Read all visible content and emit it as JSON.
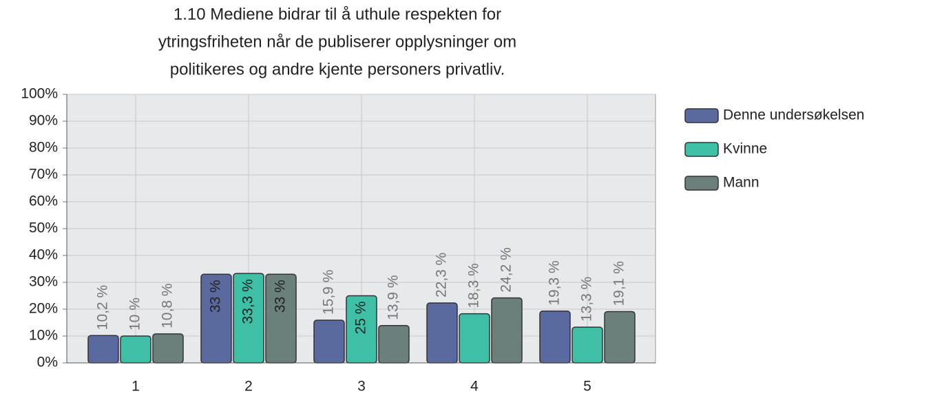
{
  "chart_data": {
    "type": "bar",
    "title": [
      "1.10 Mediene bidrar til å uthule respekten for",
      "ytringsfriheten når de publiserer opplysninger om",
      "politikeres og andre kjente personers privatliv."
    ],
    "categories": [
      "1",
      "2",
      "3",
      "4",
      "5"
    ],
    "series": [
      {
        "name": "Denne undersøkelsen",
        "color": "#5b6a9e",
        "values": [
          10.2,
          33,
          15.9,
          22.3,
          19.3
        ],
        "value_labels": [
          "10,2 %",
          "33 %",
          "15,9 %",
          "22,3 %",
          "19,3 %"
        ]
      },
      {
        "name": "Kvinne",
        "color": "#3fbfa6",
        "values": [
          10,
          33.3,
          25,
          18.3,
          13.3
        ],
        "value_labels": [
          "10 %",
          "33,3 %",
          "25 %",
          "18,3 %",
          "13,3 %"
        ]
      },
      {
        "name": "Mann",
        "color": "#6b807a",
        "values": [
          10.8,
          33,
          13.9,
          24.2,
          19.1
        ],
        "value_labels": [
          "10,8 %",
          "33 %",
          "13,9 %",
          "24,2 %",
          "19,1 %"
        ]
      }
    ],
    "ylim": [
      0,
      100
    ],
    "yticks": [
      {
        "value": 0,
        "label": "0%"
      },
      {
        "value": 10,
        "label": "10%"
      },
      {
        "value": 20,
        "label": "20%"
      },
      {
        "value": 30,
        "label": "30%"
      },
      {
        "value": 40,
        "label": "40%"
      },
      {
        "value": 50,
        "label": "50%"
      },
      {
        "value": 60,
        "label": "60%"
      },
      {
        "value": 70,
        "label": "70%"
      },
      {
        "value": 80,
        "label": "80%"
      },
      {
        "value": 90,
        "label": "90%"
      },
      {
        "value": 100,
        "label": "100%"
      }
    ],
    "grid": true,
    "legend": "right"
  }
}
